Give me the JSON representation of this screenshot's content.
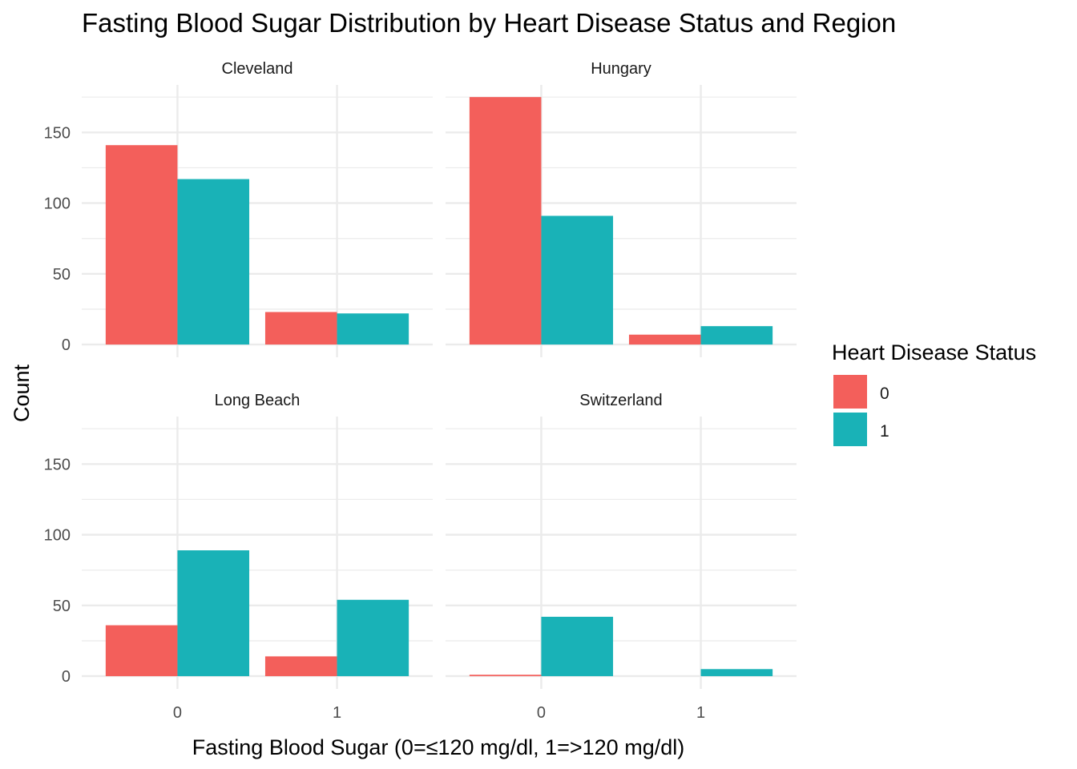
{
  "chart_data": {
    "type": "bar",
    "title": "Fasting Blood Sugar Distribution by Heart Disease Status and Region",
    "xlabel": "Fasting Blood Sugar (0=≤120 mg/dl, 1=>120 mg/dl)",
    "ylabel": "Count",
    "ylim": [
      0,
      180
    ],
    "y_ticks": [
      0,
      50,
      100,
      150
    ],
    "categories": [
      "0",
      "1"
    ],
    "grid": true,
    "legend": {
      "title": "Heart Disease Status",
      "placement": "right",
      "entries": [
        {
          "label": "0",
          "color": "#F35F5B"
        },
        {
          "label": "1",
          "color": "#19B2B7"
        }
      ]
    },
    "facets": [
      {
        "name": "Cleveland",
        "series": [
          {
            "name": "0",
            "values": [
              141,
              23
            ]
          },
          {
            "name": "1",
            "values": [
              117,
              22
            ]
          }
        ]
      },
      {
        "name": "Hungary",
        "series": [
          {
            "name": "0",
            "values": [
              175,
              7
            ]
          },
          {
            "name": "1",
            "values": [
              91,
              13
            ]
          }
        ]
      },
      {
        "name": "Long Beach",
        "series": [
          {
            "name": "0",
            "values": [
              36,
              14
            ]
          },
          {
            "name": "1",
            "values": [
              89,
              54
            ]
          }
        ]
      },
      {
        "name": "Switzerland",
        "series": [
          {
            "name": "0",
            "values": [
              1,
              0
            ]
          },
          {
            "name": "1",
            "values": [
              42,
              5
            ]
          }
        ]
      }
    ]
  }
}
